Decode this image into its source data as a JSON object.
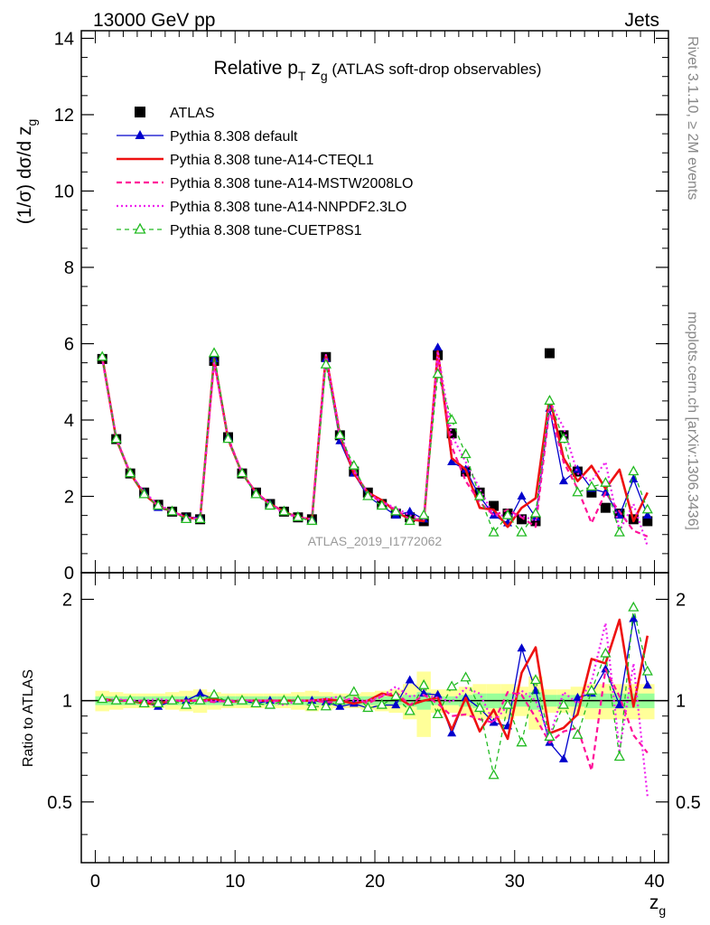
{
  "header": {
    "left": "13000 GeV pp",
    "right": "Jets"
  },
  "side_labels": {
    "rivet": "Rivet 3.1.10, ≥ 2M events",
    "mcplots": "mcplots.cern.ch [arXiv:1306.3436]"
  },
  "analysis_label": "ATLAS_2019_I1772062",
  "chart_data": [
    {
      "type": "line",
      "panel": "main",
      "title": {
        "pre": "Relative p",
        "sub1": "T",
        "mid": " z",
        "sub2": "g",
        "post": " (ATLAS soft-drop observables)"
      },
      "ylabel": "(1/σ) dσ/d z",
      "ylabel_sub": "g",
      "xlim": [
        -1,
        41
      ],
      "ylim": [
        0,
        14.2
      ],
      "yticks": [
        0,
        2,
        4,
        6,
        8,
        10,
        12,
        14
      ],
      "ytick_labels": [
        "0",
        "2",
        "4",
        "6",
        "8",
        "10",
        "12",
        "14"
      ],
      "legend": {
        "placement": "top-left",
        "entries": [
          {
            "name": "ATLAS",
            "color": "#000000",
            "marker": "square"
          },
          {
            "name": "Pythia 8.308 default",
            "color": "#0000cc",
            "marker": "triangle"
          },
          {
            "name": "Pythia 8.308 tune-A14-CTEQL1",
            "color": "#ee1111",
            "marker": "none"
          },
          {
            "name": "Pythia 8.308 tune-A14-MSTW2008LO",
            "color": "#ff1199",
            "marker": "none"
          },
          {
            "name": "Pythia 8.308 tune-A14-NNPDF2.3LO",
            "color": "#ee22ee",
            "marker": "none"
          },
          {
            "name": "Pythia 8.308 tune-CUETP8S1",
            "color": "#22bb22",
            "marker": "open-triangle"
          }
        ]
      },
      "x": [
        0.5,
        1.5,
        2.5,
        3.5,
        4.5,
        5.5,
        6.5,
        7.5,
        8.5,
        9.5,
        10.5,
        11.5,
        12.5,
        13.5,
        14.5,
        15.5,
        16.5,
        17.5,
        18.5,
        19.5,
        20.5,
        21.5,
        22.5,
        23.5,
        24.5,
        25.5,
        26.5,
        27.5,
        28.5,
        29.5,
        30.5,
        31.5,
        32.5,
        33.5,
        34.5,
        35.5,
        36.5,
        37.5,
        38.5,
        39.5
      ],
      "series": [
        {
          "name": "ATLAS",
          "values": [
            5.6,
            3.5,
            2.6,
            2.1,
            1.78,
            1.6,
            1.45,
            1.4,
            5.55,
            3.55,
            2.6,
            2.1,
            1.8,
            1.6,
            1.45,
            1.4,
            5.65,
            3.6,
            2.65,
            2.1,
            1.8,
            1.55,
            1.45,
            1.35,
            5.7,
            3.65,
            2.65,
            2.1,
            1.75,
            1.55,
            1.4,
            1.35,
            5.75,
            3.6,
            2.65,
            2.1,
            1.7,
            1.55,
            1.4,
            1.35
          ]
        },
        {
          "name": "Pythia 8.308 default",
          "values": [
            5.65,
            3.5,
            2.6,
            2.1,
            1.7,
            1.6,
            1.45,
            1.45,
            5.6,
            3.55,
            2.6,
            2.05,
            1.8,
            1.6,
            1.45,
            1.4,
            5.6,
            3.45,
            2.6,
            2.0,
            1.75,
            1.5,
            1.6,
            1.4,
            5.9,
            2.9,
            2.7,
            2.0,
            1.5,
            1.3,
            2.0,
            1.45,
            4.3,
            2.4,
            2.7,
            2.2,
            2.1,
            1.5,
            2.45,
            1.5
          ]
        },
        {
          "name": "Pythia 8.308 tune-A14-CTEQL1",
          "values": [
            5.65,
            3.5,
            2.6,
            2.05,
            1.75,
            1.6,
            1.45,
            1.4,
            5.6,
            3.5,
            2.6,
            2.1,
            1.8,
            1.6,
            1.45,
            1.4,
            5.7,
            3.6,
            2.6,
            2.1,
            1.9,
            1.6,
            1.4,
            1.35,
            5.8,
            3.0,
            2.7,
            1.7,
            1.65,
            1.2,
            1.7,
            1.95,
            4.6,
            3.0,
            2.4,
            2.8,
            2.2,
            2.7,
            1.35,
            2.1
          ]
        },
        {
          "name": "Pythia 8.308 tune-A14-MSTW2008LO",
          "values": [
            5.6,
            3.5,
            2.6,
            2.1,
            1.75,
            1.6,
            1.45,
            1.4,
            5.5,
            3.55,
            2.6,
            2.1,
            1.8,
            1.6,
            1.45,
            1.4,
            5.6,
            3.55,
            2.7,
            2.05,
            1.85,
            1.65,
            1.4,
            1.4,
            5.6,
            3.3,
            2.4,
            1.85,
            1.5,
            1.65,
            1.45,
            1.2,
            4.3,
            2.9,
            2.2,
            1.3,
            2.1,
            1.6,
            1.1,
            0.95
          ]
        },
        {
          "name": "Pythia 8.308 tune-A14-NNPDF2.3LO",
          "values": [
            5.6,
            3.55,
            2.6,
            2.1,
            1.8,
            1.6,
            1.45,
            1.4,
            5.55,
            3.5,
            2.6,
            2.1,
            1.8,
            1.55,
            1.45,
            1.4,
            5.7,
            3.7,
            2.65,
            2.1,
            1.85,
            1.7,
            1.5,
            1.4,
            5.8,
            3.6,
            2.9,
            2.2,
            1.5,
            1.5,
            1.5,
            1.35,
            4.5,
            3.8,
            2.6,
            2.4,
            2.9,
            1.1,
            1.8,
            0.7
          ]
        },
        {
          "name": "Pythia 8.308 tune-CUETP8S1",
          "values": [
            5.65,
            3.5,
            2.6,
            2.05,
            1.75,
            1.6,
            1.4,
            1.4,
            5.75,
            3.5,
            2.6,
            2.05,
            1.75,
            1.6,
            1.45,
            1.35,
            5.45,
            3.6,
            2.8,
            2.0,
            1.75,
            1.6,
            1.35,
            1.5,
            5.2,
            4.0,
            3.1,
            2.0,
            1.05,
            1.5,
            1.05,
            1.55,
            4.5,
            3.5,
            2.1,
            2.25,
            2.35,
            1.05,
            2.65,
            1.65
          ]
        }
      ]
    },
    {
      "type": "line",
      "panel": "ratio",
      "ylabel": "Ratio to ATLAS",
      "xlabel": "z",
      "xlabel_sub": "g",
      "xlim": [
        -1,
        41
      ],
      "ylim": [
        0.33,
        2.4
      ],
      "scale": "log",
      "reference_line": 1,
      "xticks": [
        0,
        10,
        20,
        30,
        40
      ],
      "xtick_labels": [
        "0",
        "10",
        "20",
        "30",
        "40"
      ],
      "yticks": [
        0.5,
        1,
        2
      ],
      "ytick_labels": [
        "0.5",
        "1",
        "2"
      ],
      "band_colors": {
        "outer": "#ffff99",
        "inner": "#99ff99"
      },
      "band_outer": [
        0.07,
        0.06,
        0.05,
        0.05,
        0.05,
        0.06,
        0.07,
        0.08,
        0.06,
        0.05,
        0.05,
        0.05,
        0.05,
        0.05,
        0.06,
        0.07,
        0.06,
        0.05,
        0.05,
        0.06,
        0.07,
        0.08,
        0.12,
        0.22,
        0.08,
        0.08,
        0.1,
        0.12,
        0.12,
        0.12,
        0.1,
        0.18,
        0.08,
        0.08,
        0.1,
        0.12,
        0.12,
        0.12,
        0.12,
        0.12
      ],
      "band_inner": [
        0.03,
        0.03,
        0.03,
        0.03,
        0.03,
        0.03,
        0.03,
        0.03,
        0.03,
        0.03,
        0.03,
        0.03,
        0.03,
        0.03,
        0.03,
        0.03,
        0.03,
        0.03,
        0.03,
        0.03,
        0.03,
        0.03,
        0.04,
        0.06,
        0.03,
        0.03,
        0.04,
        0.05,
        0.05,
        0.05,
        0.04,
        0.06,
        0.04,
        0.04,
        0.04,
        0.05,
        0.05,
        0.05,
        0.05,
        0.05
      ],
      "series": [
        {
          "name": "Pythia 8.308 default",
          "values": [
            1.01,
            1.0,
            1.0,
            0.99,
            0.96,
            1.0,
            1.0,
            1.05,
            1.01,
            1.0,
            1.0,
            0.98,
            1.0,
            1.0,
            1.0,
            1.0,
            0.99,
            0.96,
            0.98,
            0.95,
            0.97,
            0.97,
            1.15,
            1.05,
            1.04,
            0.8,
            1.02,
            0.95,
            0.86,
            0.84,
            1.43,
            1.07,
            0.75,
            0.67,
            1.02,
            1.05,
            1.24,
            0.97,
            1.75,
            1.11
          ]
        },
        {
          "name": "Pythia 8.308 tune-A14-CTEQL1",
          "values": [
            1.01,
            1.0,
            1.0,
            0.98,
            0.98,
            1.0,
            1.0,
            1.0,
            1.01,
            0.99,
            1.0,
            1.0,
            1.0,
            1.0,
            1.0,
            1.0,
            1.01,
            1.0,
            0.98,
            1.0,
            1.05,
            1.03,
            0.97,
            1.0,
            1.02,
            0.82,
            1.02,
            0.81,
            0.94,
            0.77,
            1.21,
            1.44,
            0.8,
            0.83,
            0.91,
            1.33,
            1.29,
            1.74,
            0.96,
            1.56
          ]
        },
        {
          "name": "Pythia 8.308 tune-A14-MSTW2008LO",
          "values": [
            1.0,
            1.0,
            1.0,
            1.0,
            0.98,
            1.0,
            1.0,
            1.0,
            0.99,
            1.0,
            1.0,
            1.0,
            1.0,
            1.0,
            1.0,
            1.0,
            0.99,
            0.99,
            1.02,
            0.98,
            1.03,
            1.06,
            0.97,
            1.04,
            0.98,
            0.9,
            0.91,
            0.88,
            0.86,
            1.06,
            1.04,
            0.89,
            0.75,
            0.81,
            0.83,
            0.62,
            1.24,
            1.03,
            0.79,
            0.7
          ]
        },
        {
          "name": "Pythia 8.308 tune-A14-NNPDF2.3LO",
          "values": [
            1.0,
            1.01,
            1.0,
            1.0,
            1.01,
            1.0,
            1.0,
            1.0,
            1.0,
            0.99,
            1.0,
            1.0,
            1.0,
            0.97,
            1.0,
            1.0,
            1.01,
            1.03,
            1.0,
            1.0,
            1.03,
            1.1,
            1.03,
            1.04,
            1.02,
            0.99,
            1.09,
            1.05,
            0.86,
            0.97,
            1.07,
            1.0,
            0.78,
            1.06,
            0.98,
            1.14,
            1.7,
            0.71,
            1.29,
            0.52
          ]
        },
        {
          "name": "Pythia 8.308 tune-CUETP8S1",
          "values": [
            1.01,
            1.0,
            1.0,
            0.98,
            0.98,
            1.0,
            0.97,
            1.0,
            1.04,
            0.99,
            1.0,
            0.98,
            0.97,
            1.0,
            1.0,
            0.96,
            0.96,
            1.0,
            1.06,
            0.95,
            0.97,
            1.03,
            0.93,
            1.11,
            0.91,
            1.1,
            1.17,
            0.95,
            0.6,
            0.97,
            0.75,
            1.15,
            0.78,
            0.97,
            0.79,
            1.07,
            1.38,
            0.68,
            1.89,
            1.22
          ]
        }
      ]
    }
  ]
}
